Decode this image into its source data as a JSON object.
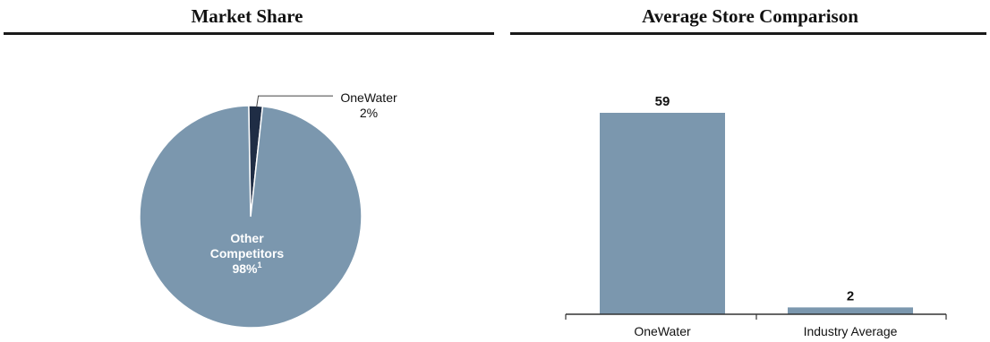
{
  "panels": {
    "left": {
      "title": "Market Share"
    },
    "right": {
      "title": "Average Store Comparison"
    }
  },
  "chart_data": [
    {
      "type": "pie",
      "title": "Market Share",
      "slices": [
        {
          "label": "OneWater",
          "value": 2,
          "value_label": "2%",
          "color": "#1f2d45",
          "label_position": "outside-callout"
        },
        {
          "label_lines": [
            "Other",
            "Competitors"
          ],
          "label": "Other Competitors",
          "value": 98,
          "value_label": "98%",
          "footnote": "1",
          "color": "#7b97ae",
          "label_position": "inside"
        }
      ]
    },
    {
      "type": "bar",
      "title": "Average Store Comparison",
      "categories": [
        "OneWater",
        "Industry Average"
      ],
      "values": [
        59,
        2
      ],
      "data_labels": [
        "59",
        "2"
      ],
      "color": "#7b97ae",
      "ylim": [
        0,
        59
      ],
      "grid": false
    }
  ]
}
